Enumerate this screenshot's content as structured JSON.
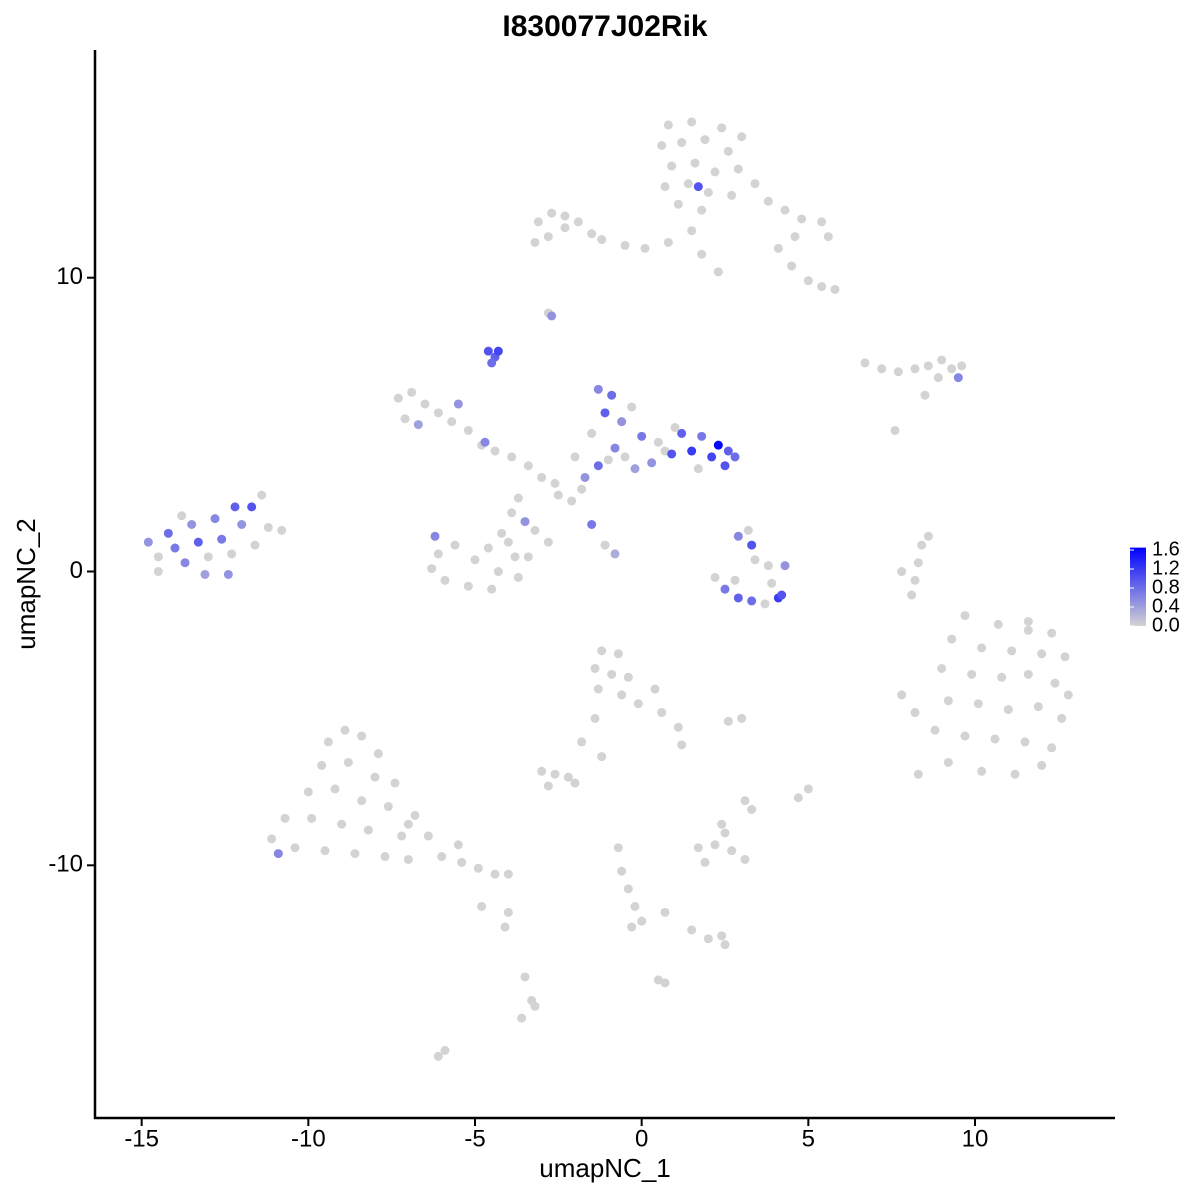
{
  "chart_data": {
    "type": "scatter",
    "title": "I830077J02Rik",
    "x_label": "umapNC_1",
    "y_label": "umapNC_2",
    "xlim": [
      -16.4,
      14.2
    ],
    "ylim": [
      -18.6,
      17.75
    ],
    "xticks": [
      -15,
      -10,
      -5,
      0,
      5,
      10
    ],
    "yticks": [
      -10,
      0,
      10
    ],
    "low_color": "#d3d3d3",
    "high_color": "#0000ff",
    "colorlim": [
      0,
      1.65
    ],
    "colorticks": [
      {
        "value": 0,
        "label": "0.0"
      },
      0.4,
      0.8,
      1.2,
      1.6
    ],
    "x": [
      0.8,
      1.5,
      2.4,
      3,
      0.6,
      1.2,
      1.9,
      2.6,
      0.9,
      1.6,
      2.2,
      2.9,
      0.7,
      1.4,
      2.0,
      2.7,
      1.1,
      1.8,
      3.4,
      3.8,
      4.3,
      4.8,
      5.4,
      5.6,
      4.6,
      4.1,
      4.5,
      5.0,
      5.4,
      5.8,
      1.5,
      1.8,
      0.8,
      0.1,
      -0.5,
      2.3,
      1.7,
      -3.1,
      -2.7,
      -2.3,
      -1.9,
      -1.5,
      -2.8,
      -3.2,
      -1.2,
      -2.3,
      6.7,
      7.2,
      7.7,
      8.2,
      8.6,
      9.0,
      9.3,
      9.6,
      8.9,
      8.5,
      9.5,
      -4.6,
      -4.4,
      -4.5,
      -4.3,
      -2.8,
      -2.7,
      -7.3,
      -6.9,
      -6.5,
      -6.1,
      -7.1,
      -5.7,
      -5.2,
      -4.8,
      -4.4,
      -3.9,
      -6.7,
      -5.5,
      -4.7,
      -3.4,
      -3.0,
      -2.6,
      -3.9,
      -3.5,
      -3.2,
      -2.8,
      -4.2,
      -4.6,
      -3.8,
      -4.3,
      -5.0,
      -5.6,
      -6.1,
      -6.3,
      -5.9,
      -5.2,
      -4.5,
      -3.7,
      -6.2,
      -4.0,
      -3.4,
      -2.1,
      -1.5,
      -1.1,
      -0.8,
      -2.5,
      -1.8,
      -3.7,
      -1.3,
      -0.9,
      -1.1,
      -0.6,
      -1.5,
      -0.8,
      -1.3,
      -1.0,
      0.0,
      0.5,
      0.9,
      1.2,
      1.5,
      1.8,
      2.1,
      2.3,
      2.5,
      2.6,
      1.7,
      0.3,
      -0.2,
      -0.5,
      1.0,
      2.8,
      -2.0,
      -1.7,
      -0.3,
      0.7,
      2.9,
      3.3,
      3.4,
      3.8,
      4.3,
      2.2,
      2.5,
      2.9,
      3.3,
      3.7,
      4.1,
      4.2,
      3.9,
      2.8,
      3.2,
      -14.8,
      -14.5,
      -14.2,
      -14.0,
      -13.7,
      -13.5,
      -13.3,
      -13.0,
      -12.8,
      -12.6,
      -12.3,
      -12.0,
      -11.7,
      -11.4,
      -11.2,
      -10.8,
      -12.4,
      -13.8,
      -14.5,
      -13.1,
      -12.2,
      -11.6,
      9.7,
      10.7,
      11.6,
      12.3,
      9.3,
      10.2,
      11.1,
      12.0,
      12.7,
      9.0,
      9.9,
      10.8,
      11.6,
      12.4,
      12.8,
      9.2,
      10.1,
      11.0,
      11.9,
      12.6,
      8.8,
      9.7,
      10.6,
      11.5,
      12.3,
      9.2,
      10.2,
      11.2,
      12.0,
      8.2,
      7.8,
      8.3,
      11.6,
      8.2,
      8.3,
      8.4,
      8.6,
      8.1,
      7.8,
      7.6,
      -9.4,
      -8.9,
      -8.4,
      -7.9,
      -9.6,
      -8.8,
      -8.0,
      -7.4,
      -10.0,
      -9.2,
      -8.4,
      -7.6,
      -6.8,
      -10.7,
      -9.9,
      -9.0,
      -8.2,
      -7.2,
      -6.4,
      -11.1,
      -10.4,
      -9.5,
      -8.6,
      -7.7,
      -10.9,
      -6.0,
      -5.4,
      -4.9,
      -4.4,
      -4.0,
      -5.5,
      -7.0,
      -4.8,
      -7.0,
      -1.2,
      -0.7,
      -1.4,
      -0.9,
      -0.4,
      -1.3,
      -0.6,
      -0.1,
      0.6,
      1.1,
      1.2,
      -1.4,
      -1.8,
      -1.2,
      0.4,
      -3.0,
      -2.6,
      -2.2,
      -2.8,
      -2.0,
      -0.7,
      -0.6,
      -0.4,
      -0.2,
      0.0,
      -0.3,
      0.7,
      1.5,
      2.0,
      2.5,
      2.4,
      1.7,
      2.2,
      2.7,
      3.1,
      2.4,
      2.5,
      1.9,
      3.1,
      3.0,
      2.6,
      4.7,
      5.0,
      3.3,
      -3.5,
      -3.3,
      -3.6,
      -3.2,
      -5.9,
      -6.1,
      0.5,
      0.7,
      -4.0,
      -4.1
    ],
    "y": [
      15.2,
      15.3,
      15.1,
      14.8,
      14.5,
      14.6,
      14.7,
      14.3,
      13.8,
      13.9,
      13.6,
      13.7,
      13.1,
      13.2,
      12.9,
      12.8,
      12.5,
      12.3,
      13.2,
      12.6,
      12.3,
      12.0,
      11.9,
      11.4,
      11.4,
      11.0,
      10.4,
      9.9,
      9.7,
      9.6,
      11.6,
      10.8,
      11.2,
      11.0,
      11.1,
      10.2,
      13.1,
      11.9,
      12.2,
      11.7,
      11.9,
      11.5,
      11.4,
      11.2,
      11.3,
      12.1,
      7.1,
      6.9,
      6.8,
      6.9,
      7.0,
      7.2,
      6.9,
      7.0,
      6.6,
      6.0,
      6.6,
      7.5,
      7.3,
      7.1,
      7.5,
      8.8,
      8.7,
      5.9,
      6.1,
      5.7,
      5.4,
      5.2,
      5.1,
      4.8,
      4.3,
      4.1,
      3.9,
      5.0,
      5.7,
      4.4,
      3.6,
      3.2,
      3.0,
      2.0,
      1.7,
      1.4,
      1.0,
      1.3,
      0.8,
      0.5,
      0.0,
      0.4,
      0.9,
      0.6,
      0.1,
      -0.3,
      -0.5,
      -0.6,
      -0.2,
      1.2,
      1.0,
      0.5,
      2.4,
      1.6,
      0.9,
      0.6,
      2.6,
      2.8,
      2.5,
      6.2,
      6.0,
      5.4,
      5.1,
      4.7,
      4.2,
      3.6,
      3.8,
      4.6,
      4.4,
      4.0,
      4.7,
      4.1,
      4.6,
      3.9,
      4.3,
      3.6,
      4.1,
      3.5,
      3.7,
      3.5,
      3.9,
      4.9,
      3.9,
      3.9,
      3.2,
      5.6,
      4.1,
      1.2,
      0.9,
      0.4,
      0.2,
      0.2,
      -0.2,
      -0.6,
      -0.9,
      -1.0,
      -1.1,
      -0.9,
      -0.8,
      -0.4,
      -0.3,
      1.4,
      1.0,
      0.5,
      1.3,
      0.8,
      0.3,
      1.6,
      1.0,
      0.5,
      1.8,
      1.1,
      0.6,
      1.6,
      2.2,
      2.6,
      1.5,
      1.4,
      -0.1,
      1.9,
      0.0,
      -0.1,
      2.2,
      0.9,
      -1.5,
      -1.8,
      -1.7,
      -2.1,
      -2.3,
      -2.6,
      -2.7,
      -2.8,
      -2.9,
      -3.3,
      -3.5,
      -3.6,
      -3.5,
      -3.8,
      -4.2,
      -4.4,
      -4.5,
      -4.7,
      -4.6,
      -5.0,
      -5.4,
      -5.6,
      -5.7,
      -5.8,
      -6.0,
      -6.5,
      -6.8,
      -6.9,
      -6.6,
      -4.8,
      -4.2,
      -6.9,
      -2.0,
      -0.3,
      0.3,
      0.9,
      1.2,
      -0.8,
      0.0,
      4.8,
      -5.8,
      -5.4,
      -5.6,
      -6.2,
      -6.6,
      -6.5,
      -7.0,
      -7.2,
      -7.5,
      -7.4,
      -7.8,
      -8.0,
      -8.3,
      -8.4,
      -8.4,
      -8.6,
      -8.8,
      -9.0,
      -9.0,
      -9.1,
      -9.4,
      -9.5,
      -9.6,
      -9.7,
      -9.6,
      -9.7,
      -9.9,
      -10.1,
      -10.3,
      -10.3,
      -9.3,
      -8.6,
      -11.4,
      -9.8,
      -2.7,
      -2.8,
      -3.3,
      -3.5,
      -3.6,
      -4.0,
      -4.2,
      -4.5,
      -4.8,
      -5.3,
      -5.9,
      -5.0,
      -5.8,
      -6.3,
      -4.0,
      -6.8,
      -6.9,
      -7.0,
      -7.3,
      -7.2,
      -9.4,
      -10.2,
      -10.8,
      -11.4,
      -11.9,
      -12.1,
      -11.6,
      -12.2,
      -12.5,
      -12.7,
      -12.4,
      -9.4,
      -9.3,
      -9.5,
      -9.8,
      -8.6,
      -8.9,
      -9.9,
      -7.8,
      -5.0,
      -5.1,
      -7.7,
      -7.4,
      -8.1,
      -13.8,
      -14.6,
      -15.2,
      -14.8,
      -16.3,
      -16.5,
      -13.9,
      -14.0,
      -11.6,
      -12.1
    ],
    "values": [
      0,
      0,
      0,
      0,
      0,
      0,
      0,
      0,
      0,
      0,
      0,
      0,
      0,
      0,
      0,
      0,
      0,
      0,
      0,
      0,
      0,
      0,
      0,
      0,
      0,
      0,
      0,
      0,
      0,
      0,
      0,
      0,
      0,
      0,
      0,
      0,
      1.0,
      0,
      0,
      0,
      0,
      0,
      0,
      0,
      0,
      0,
      0,
      0,
      0,
      0,
      0,
      0,
      0,
      0,
      0,
      0,
      0.6,
      1.0,
      0.9,
      0.8,
      1.1,
      0,
      0.5,
      0,
      0,
      0,
      0,
      0,
      0,
      0,
      0,
      0,
      0,
      0.4,
      0.5,
      0.6,
      0,
      0,
      0,
      0,
      0.5,
      0,
      0,
      0,
      0,
      0,
      0,
      0,
      0,
      0,
      0,
      0,
      0,
      0,
      0,
      0.6,
      0,
      0,
      0,
      0.7,
      0,
      0.3,
      0,
      0,
      0,
      0.6,
      0.8,
      0.9,
      0.5,
      0,
      0.6,
      0.8,
      0,
      0.7,
      0,
      1.0,
      0.9,
      1.2,
      0.7,
      1.1,
      1.6,
      1.0,
      0.9,
      0,
      0.5,
      0.4,
      0,
      0,
      0.8,
      0,
      0.5,
      0,
      0,
      0.6,
      1.0,
      0,
      0,
      0.5,
      0,
      0.7,
      0.9,
      0.8,
      0,
      1.2,
      1.0,
      0,
      0,
      0,
      0.5,
      0,
      0.8,
      0.7,
      0.6,
      0.5,
      0.9,
      0,
      0.6,
      0.7,
      0,
      0.5,
      1.0,
      0,
      0,
      0,
      0.5,
      0,
      0,
      0.4,
      0.9,
      0,
      0,
      0,
      0,
      0,
      0,
      0,
      0,
      0,
      0,
      0,
      0,
      0,
      0,
      0,
      0,
      0,
      0,
      0,
      0,
      0,
      0,
      0,
      0,
      0,
      0,
      0,
      0,
      0,
      0,
      0,
      0,
      0,
      0,
      0,
      0,
      0,
      0,
      0,
      0,
      0,
      0,
      0,
      0,
      0,
      0,
      0,
      0,
      0,
      0,
      0,
      0,
      0,
      0,
      0,
      0,
      0,
      0,
      0,
      0,
      0,
      0,
      0,
      0,
      0,
      0.6,
      0,
      0,
      0,
      0,
      0,
      0,
      0,
      0,
      0,
      0,
      0,
      0,
      0,
      0,
      0,
      0,
      0,
      0,
      0,
      0,
      0,
      0,
      0,
      0,
      0,
      0,
      0,
      0,
      0,
      0,
      0,
      0,
      0,
      0,
      0,
      0,
      0,
      0,
      0,
      0,
      0,
      0,
      0,
      0,
      0,
      0,
      0,
      0,
      0,
      0,
      0,
      0,
      0,
      0,
      0,
      0,
      0,
      0,
      0,
      0,
      0,
      0,
      0
    ]
  }
}
